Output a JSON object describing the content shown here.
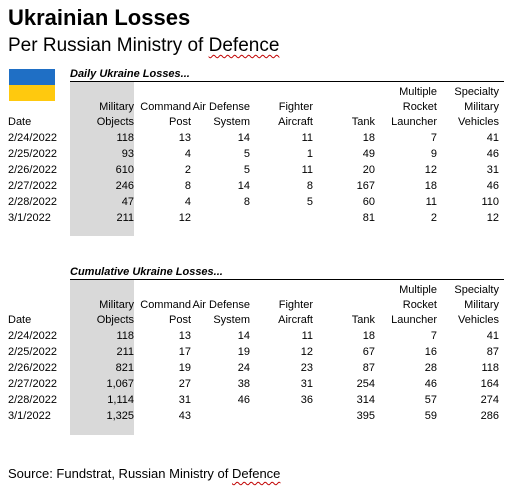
{
  "title": "Ukrainian Losses",
  "subtitle_prefix": "Per Russian Ministry of ",
  "subtitle_word": "Defence",
  "flag": {
    "top_color": "#1f6fc5",
    "bottom_color": "#ffc90e"
  },
  "headers": [
    [
      "Date"
    ],
    [
      "Military",
      "Objects"
    ],
    [
      "Command",
      "Post"
    ],
    [
      "Air Defense",
      "System"
    ],
    [
      "Fighter",
      "Aircraft"
    ],
    [
      "Tank"
    ],
    [
      "Multiple",
      "Rocket",
      "Launcher"
    ],
    [
      "Specialty",
      "Military",
      "Vehicles"
    ]
  ],
  "daily": {
    "section_title": "Daily Ukraine Losses...",
    "rows": [
      [
        "2/24/2022",
        "118",
        "13",
        "14",
        "11",
        "18",
        "7",
        "41"
      ],
      [
        "2/25/2022",
        "93",
        "4",
        "5",
        "1",
        "49",
        "9",
        "46"
      ],
      [
        "2/26/2022",
        "610",
        "2",
        "5",
        "11",
        "20",
        "12",
        "31"
      ],
      [
        "2/27/2022",
        "246",
        "8",
        "14",
        "8",
        "167",
        "18",
        "46"
      ],
      [
        "2/28/2022",
        "47",
        "4",
        "8",
        "5",
        "60",
        "11",
        "110"
      ],
      [
        "3/1/2022",
        "211",
        "12",
        "",
        "",
        "81",
        "2",
        "12"
      ]
    ]
  },
  "cumulative": {
    "section_title": "Cumulative Ukraine Losses...",
    "rows": [
      [
        "2/24/2022",
        "118",
        "13",
        "14",
        "11",
        "18",
        "7",
        "41"
      ],
      [
        "2/25/2022",
        "211",
        "17",
        "19",
        "12",
        "67",
        "16",
        "87"
      ],
      [
        "2/26/2022",
        "821",
        "19",
        "24",
        "23",
        "87",
        "28",
        "118"
      ],
      [
        "2/27/2022",
        "1,067",
        "27",
        "38",
        "31",
        "254",
        "46",
        "164"
      ],
      [
        "2/28/2022",
        "1,114",
        "31",
        "46",
        "36",
        "314",
        "57",
        "274"
      ],
      [
        "3/1/2022",
        "1,325",
        "43",
        "",
        "",
        "395",
        "59",
        "286"
      ]
    ]
  },
  "source_prefix": "Source: Fundstrat, Russian Ministry of ",
  "source_word": "Defence"
}
